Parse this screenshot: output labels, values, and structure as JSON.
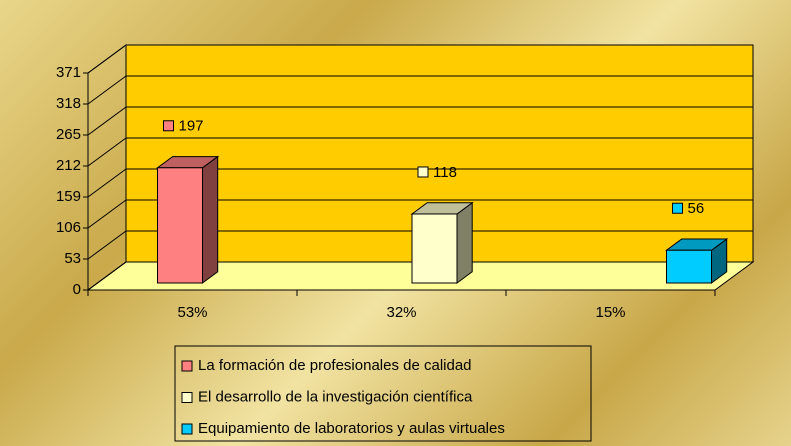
{
  "chart_data": {
    "type": "bar3d",
    "categories": [
      "53%",
      "32%",
      "15%"
    ],
    "series": [
      {
        "name": "La formación de profesionales de calidad",
        "color": "#ff8080",
        "values": [
          197,
          null,
          null
        ]
      },
      {
        "name": "El desarrollo de la investigación científica",
        "color": "#ffffcc",
        "values": [
          null,
          118,
          null
        ]
      },
      {
        "name": "Equipamiento de laboratorios y aulas virtuales",
        "color": "#00ccff",
        "values": [
          null,
          null,
          56
        ]
      }
    ],
    "ylim": [
      0,
      371
    ],
    "yticks": [
      0,
      53,
      106,
      159,
      212,
      265,
      318,
      371
    ],
    "grid": true,
    "legend": "bottom",
    "wall_color": "#ffcc00",
    "floor_color": "#ffff99"
  }
}
